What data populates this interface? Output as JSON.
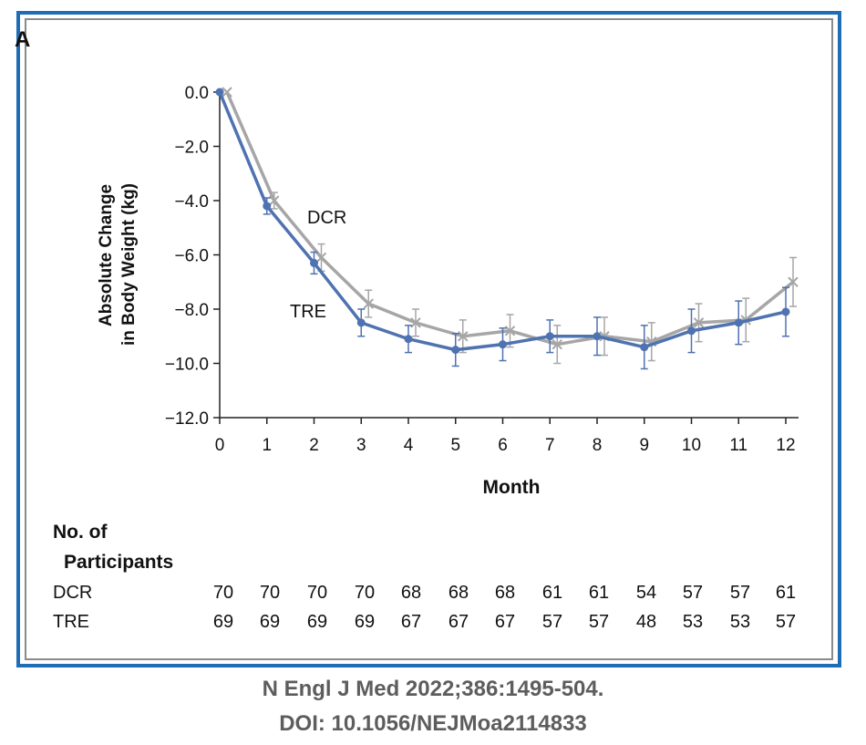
{
  "panel_label": "A",
  "citation": {
    "line1": "N Engl J Med 2022;386:1495-504.",
    "line2": "DOI: 10.1056/NEJMoa2114833"
  },
  "colors": {
    "DCR": "#a6a6a6",
    "TRE": "#4f72b0",
    "frame": "#1f6db4"
  },
  "chart_data": {
    "type": "line",
    "title": "",
    "xlabel": "Month",
    "ylabel": [
      "Absolute Change",
      "in Body Weight (kg)"
    ],
    "x": [
      0,
      1,
      2,
      3,
      4,
      5,
      6,
      7,
      8,
      9,
      10,
      11,
      12
    ],
    "xlim": [
      0,
      12
    ],
    "ylim": [
      -12,
      0
    ],
    "y_ticks": [
      "0.0",
      "−2.0",
      "−4.0",
      "−6.0",
      "−8.0",
      "−10.0",
      "−12.0"
    ],
    "x_ticks": [
      "0",
      "1",
      "2",
      "3",
      "4",
      "5",
      "6",
      "7",
      "8",
      "9",
      "10",
      "11",
      "12"
    ],
    "series": [
      {
        "name": "DCR",
        "marker": "x",
        "values": [
          0.0,
          -4.0,
          -6.1,
          -7.8,
          -8.5,
          -9.0,
          -8.8,
          -9.3,
          -9.0,
          -9.2,
          -8.5,
          -8.4,
          -7.0
        ],
        "error": [
          0.0,
          0.3,
          0.5,
          0.5,
          0.5,
          0.6,
          0.6,
          0.7,
          0.7,
          0.7,
          0.7,
          0.8,
          0.9
        ]
      },
      {
        "name": "TRE",
        "marker": "dot",
        "values": [
          0.0,
          -4.2,
          -6.3,
          -8.5,
          -9.1,
          -9.5,
          -9.3,
          -9.0,
          -9.0,
          -9.4,
          -8.8,
          -8.5,
          -8.1
        ],
        "error": [
          0.0,
          0.3,
          0.4,
          0.5,
          0.5,
          0.6,
          0.6,
          0.6,
          0.7,
          0.8,
          0.8,
          0.8,
          0.9
        ]
      }
    ],
    "grid": false,
    "legend": "inline labels near lines",
    "participants": {
      "heading": [
        "No. of",
        "Participants"
      ],
      "rows": [
        {
          "label": "DCR",
          "counts": [
            "70",
            "70",
            "70",
            "70",
            "68",
            "68",
            "68",
            "61",
            "61",
            "54",
            "57",
            "57",
            "61"
          ]
        },
        {
          "label": "TRE",
          "counts": [
            "69",
            "69",
            "69",
            "69",
            "67",
            "67",
            "67",
            "57",
            "57",
            "48",
            "53",
            "53",
            "57"
          ]
        }
      ]
    }
  }
}
